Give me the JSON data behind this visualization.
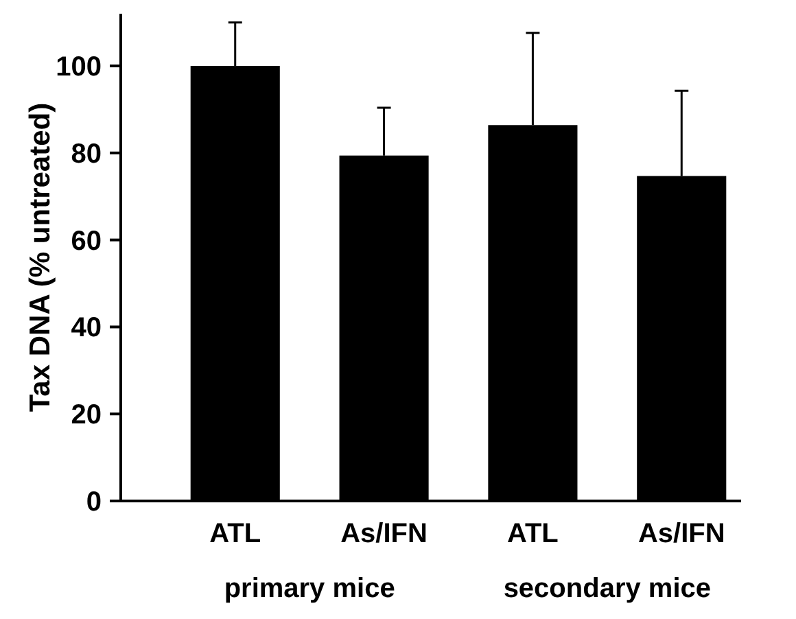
{
  "chart_data": {
    "type": "bar",
    "ylabel": "Tax DNA (% untreated)",
    "categories": [
      "ATL",
      "As/IFN",
      "ATL",
      "As/IFN"
    ],
    "values": [
      100,
      79.4,
      86.4,
      74.7
    ],
    "color": "#000000",
    "errors": [
      [
        100,
        110
      ],
      [
        79.4,
        90.4
      ],
      [
        86.4,
        107.6
      ],
      [
        74.7,
        94.3
      ]
    ],
    "ylim": [
      0,
      112
    ],
    "yticks": [
      0,
      20,
      40,
      60,
      80,
      100
    ],
    "grid": false,
    "annotations": [
      "primary mice",
      "secondary mice"
    ]
  }
}
